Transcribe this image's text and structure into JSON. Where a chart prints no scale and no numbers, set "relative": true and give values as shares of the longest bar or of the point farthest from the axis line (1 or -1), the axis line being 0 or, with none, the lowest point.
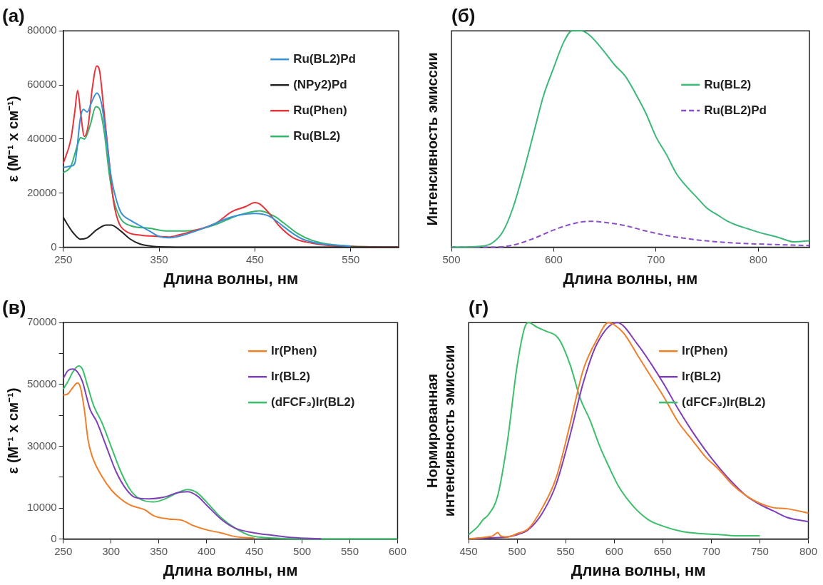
{
  "chart_data": [
    {
      "type": "line",
      "title": "(a)",
      "xlabel": "Длина волны, нм",
      "ylabel": "ε (М⁻¹ x см⁻¹)",
      "xlim": [
        250,
        600
      ],
      "xticks": [
        250,
        350,
        450,
        550
      ],
      "ylim": [
        0,
        80000
      ],
      "yticks": [
        0,
        20000,
        40000,
        60000,
        80000
      ],
      "grid": false,
      "legend": "top right",
      "series": [
        {
          "name": "Ru(BL2)Pd",
          "color": "#3a8fd6",
          "x": [
            250,
            258,
            262,
            268,
            271,
            275,
            280,
            285,
            290,
            295,
            300,
            305,
            310,
            320,
            330,
            340,
            350,
            360,
            370,
            380,
            400,
            420,
            435,
            450,
            465,
            475,
            490,
            500,
            520,
            550
          ],
          "values": [
            29500,
            30000,
            31000,
            48000,
            51000,
            50000,
            54000,
            57000,
            53000,
            40000,
            26000,
            18000,
            13000,
            10000,
            8000,
            6000,
            4000,
            3500,
            4000,
            5000,
            7500,
            10500,
            12000,
            12500,
            11500,
            9000,
            5000,
            3000,
            1200,
            400
          ]
        },
        {
          "name": "(NPy2)Pd",
          "color": "#222222",
          "x": [
            250,
            260,
            268,
            275,
            285,
            295,
            300,
            310,
            320,
            330,
            345,
            360,
            400,
            600
          ],
          "values": [
            11000,
            5500,
            3000,
            3500,
            6500,
            8200,
            8200,
            6000,
            3000,
            1200,
            300,
            100,
            0,
            0
          ]
        },
        {
          "name": "Ru(Phen)",
          "color": "#e8343a",
          "x": [
            250,
            258,
            262,
            265,
            268,
            272,
            276,
            280,
            285,
            288,
            292,
            297,
            302,
            307,
            315,
            330,
            350,
            360,
            370,
            390,
            410,
            425,
            440,
            450,
            455,
            465,
            475,
            490,
            510,
            550,
            600
          ],
          "values": [
            31000,
            40000,
            50000,
            58000,
            50000,
            41000,
            45000,
            58000,
            67000,
            65000,
            52000,
            35000,
            18000,
            10000,
            6000,
            4500,
            4000,
            3800,
            4500,
            6500,
            9000,
            13000,
            15000,
            16500,
            16000,
            12500,
            8000,
            3500,
            1500,
            200,
            0
          ]
        },
        {
          "name": "Ru(BL2)",
          "color": "#35b56a",
          "x": [
            250,
            258,
            265,
            268,
            272,
            278,
            284,
            288,
            293,
            298,
            303,
            310,
            320,
            340,
            360,
            375,
            390,
            410,
            430,
            455,
            470,
            480,
            495,
            510,
            530,
            560,
            600
          ],
          "values": [
            27500,
            30000,
            38000,
            40500,
            40000,
            45000,
            52000,
            51000,
            42000,
            27000,
            17000,
            10500,
            8000,
            7000,
            6000,
            6000,
            6500,
            8500,
            11500,
            13500,
            11500,
            9000,
            5000,
            2500,
            1000,
            300,
            0
          ]
        }
      ]
    },
    {
      "type": "line",
      "title": "(б)",
      "xlabel": "Длина волны, нм",
      "ylabel": "Интенсивность эмиссии",
      "relative": true,
      "xlim": [
        500,
        850
      ],
      "xticks": [
        500,
        600,
        700,
        800
      ],
      "grid": false,
      "legend": "right",
      "series": [
        {
          "name": "Ru(BL2)",
          "color": "#3cb878",
          "line_style": "solid",
          "x": [
            500,
            530,
            540,
            550,
            560,
            570,
            580,
            590,
            600,
            610,
            618,
            627,
            635,
            650,
            660,
            670,
            680,
            690,
            700,
            710,
            720,
            730,
            740,
            750,
            760,
            770,
            780,
            790,
            800,
            820,
            835,
            850
          ],
          "values": [
            0,
            0.005,
            0.02,
            0.07,
            0.18,
            0.34,
            0.52,
            0.7,
            0.83,
            0.95,
            1,
            1,
            0.98,
            0.9,
            0.84,
            0.79,
            0.71,
            0.62,
            0.51,
            0.43,
            0.34,
            0.28,
            0.23,
            0.18,
            0.15,
            0.12,
            0.1,
            0.085,
            0.07,
            0.045,
            0.025,
            0.03
          ]
        },
        {
          "name": "Ru(BL2)Pd",
          "color": "#8a4fc8",
          "line_style": "dashed",
          "x": [
            500,
            540,
            560,
            580,
            600,
            620,
            635,
            650,
            670,
            690,
            710,
            730,
            760,
            800,
            850
          ],
          "values": [
            0,
            0,
            0.01,
            0.04,
            0.08,
            0.11,
            0.12,
            0.115,
            0.1,
            0.075,
            0.055,
            0.04,
            0.025,
            0.015,
            0.008
          ]
        }
      ]
    },
    {
      "type": "line",
      "title": "(в)",
      "xlabel": "Длина волны, нм",
      "ylabel": "ε (М⁻¹ x см⁻¹)",
      "xlim": [
        250,
        600
      ],
      "xticks": [
        250,
        300,
        350,
        400,
        450,
        500,
        550,
        600
      ],
      "ylim": [
        0,
        70000
      ],
      "yticks": [
        0,
        10000,
        {
          "value": 20000,
          "label": null
        },
        30000,
        {
          "value": 40000,
          "label": null
        },
        50000,
        {
          "value": 60000,
          "label": null
        },
        70000
      ],
      "grid": false,
      "legend": "top right",
      "series": [
        {
          "name": "Ir(Phen)",
          "color": "#f07f2a",
          "x": [
            250,
            255,
            260,
            265,
            268,
            272,
            276,
            280,
            290,
            300,
            310,
            320,
            335,
            345,
            360,
            375,
            385,
            400,
            415,
            430,
            450
          ],
          "values": [
            46500,
            47000,
            49000,
            50500,
            49000,
            42000,
            32000,
            27000,
            20500,
            16000,
            13000,
            11000,
            9500,
            7500,
            6500,
            6000,
            4500,
            3000,
            2000,
            800,
            300
          ]
        },
        {
          "name": "Ir(BL2)",
          "color": "#7e3fb8",
          "x": [
            250,
            255,
            260,
            265,
            270,
            278,
            285,
            295,
            305,
            315,
            325,
            340,
            355,
            370,
            380,
            390,
            400,
            415,
            430,
            450,
            470,
            490,
            520
          ],
          "values": [
            52000,
            54500,
            55000,
            54000,
            51000,
            42000,
            38000,
            30000,
            22000,
            16500,
            13500,
            13000,
            13500,
            15000,
            15300,
            14000,
            11000,
            6500,
            3500,
            2000,
            1200,
            500,
            100
          ]
        },
        {
          "name": "(dFCF₃)Ir(BL2)",
          "color": "#3cbf6a",
          "x": [
            250,
            255,
            260,
            266,
            270,
            275,
            282,
            290,
            300,
            310,
            320,
            330,
            345,
            355,
            370,
            380,
            390,
            400,
            415,
            430,
            445,
            460,
            480,
            500,
            600
          ],
          "values": [
            48500,
            51000,
            54000,
            56000,
            55000,
            50000,
            43000,
            38000,
            30000,
            22000,
            16000,
            13000,
            12000,
            12800,
            15000,
            16000,
            15000,
            12000,
            7000,
            3500,
            1200,
            500,
            200,
            0,
            0
          ]
        }
      ]
    },
    {
      "type": "line",
      "title": "(г)",
      "xlabel": "Длина волны, нм",
      "ylabel": "Нормированная интенсивность эмиссии",
      "relative": true,
      "xlim": [
        450,
        800
      ],
      "xticks": [
        450,
        500,
        550,
        600,
        650,
        700,
        750,
        800
      ],
      "grid": false,
      "legend": "top right",
      "series": [
        {
          "name": "Ir(Phen)",
          "color": "#f07f2a",
          "x": [
            450,
            460,
            470,
            475,
            480,
            483,
            490,
            500,
            512,
            526,
            540,
            554,
            568,
            582,
            594,
            600,
            610,
            624,
            638,
            652,
            666,
            680,
            694,
            708,
            722,
            736,
            750,
            764,
            778,
            800
          ],
          "values": [
            0,
            0.005,
            0.01,
            0.015,
            0.03,
            0.015,
            0.01,
            0.025,
            0.05,
            0.145,
            0.28,
            0.52,
            0.78,
            0.92,
            1,
            0.99,
            0.95,
            0.85,
            0.75,
            0.65,
            0.54,
            0.46,
            0.38,
            0.32,
            0.25,
            0.2,
            0.165,
            0.145,
            0.14,
            0.12
          ]
        },
        {
          "name": "Ir(BL2)",
          "color": "#7e3fb8",
          "x": [
            450,
            470,
            490,
            500,
            512,
            526,
            540,
            554,
            568,
            582,
            603,
            624,
            638,
            652,
            666,
            680,
            694,
            708,
            722,
            736,
            750,
            764,
            778,
            800
          ],
          "values": [
            0,
            0.005,
            0.01,
            0.02,
            0.045,
            0.12,
            0.25,
            0.47,
            0.72,
            0.9,
            1,
            0.9,
            0.81,
            0.71,
            0.6,
            0.5,
            0.41,
            0.33,
            0.26,
            0.2,
            0.16,
            0.13,
            0.1,
            0.08
          ]
        },
        {
          "name": "(dFCF₃)Ir(BL2)",
          "color": "#3cbf6a",
          "x": [
            450,
            460,
            465,
            470,
            480,
            490,
            500,
            508,
            512,
            520,
            530,
            540,
            545,
            555,
            565,
            575,
            585,
            595,
            605,
            620,
            635,
            650,
            670,
            690,
            710,
            730,
            750
          ],
          "values": [
            0.02,
            0.06,
            0.09,
            0.11,
            0.2,
            0.45,
            0.8,
            0.98,
            1,
            0.98,
            0.96,
            0.94,
            0.91,
            0.8,
            0.65,
            0.55,
            0.43,
            0.33,
            0.24,
            0.15,
            0.09,
            0.06,
            0.035,
            0.025,
            0.02,
            0.015,
            0.015
          ]
        }
      ]
    }
  ]
}
